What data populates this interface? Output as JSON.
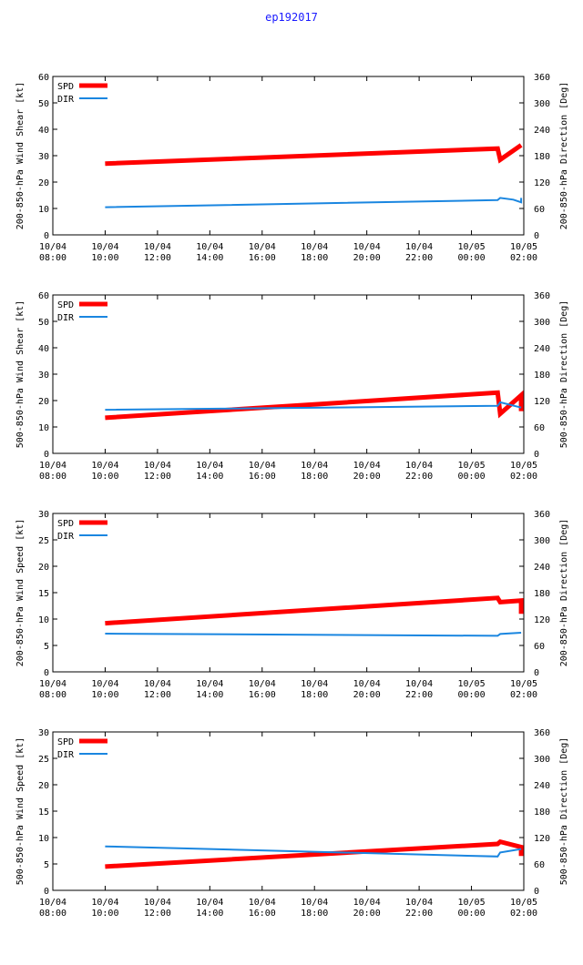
{
  "page_title": "ep192017",
  "colors": {
    "spd": "#ff0000",
    "dir": "#1a86e0",
    "title": "#1a1aff"
  },
  "x_ticks": [
    [
      "10/04",
      "08:00"
    ],
    [
      "10/04",
      "10:00"
    ],
    [
      "10/04",
      "12:00"
    ],
    [
      "10/04",
      "14:00"
    ],
    [
      "10/04",
      "16:00"
    ],
    [
      "10/04",
      "18:00"
    ],
    [
      "10/04",
      "20:00"
    ],
    [
      "10/04",
      "22:00"
    ],
    [
      "10/05",
      "00:00"
    ],
    [
      "10/05",
      "02:00"
    ]
  ],
  "chart_data": [
    {
      "type": "line",
      "ylabel": "200-850-hPa Wind Shear [kt]",
      "y2label": "200-850-hPa Direction [Deg]",
      "xlim": [
        "2017-10-04T08:00",
        "2017-10-05T02:00"
      ],
      "ylim": [
        0,
        60
      ],
      "yticks": [
        0,
        10,
        20,
        30,
        40,
        50,
        60
      ],
      "y2lim": [
        0,
        360
      ],
      "y2ticks": [
        0,
        60,
        120,
        180,
        240,
        300,
        360
      ],
      "legend_position": "top-left",
      "series": [
        {
          "name": "SPD",
          "axis": "left",
          "x": [
            "2017-10-04T10:00",
            "2017-10-05T01:00",
            "2017-10-05T01:06",
            "2017-10-05T01:54"
          ],
          "y": [
            27,
            32.7,
            28.5,
            34
          ]
        },
        {
          "name": "DIR",
          "axis": "right",
          "x": [
            "2017-10-04T10:00",
            "2017-10-05T01:00",
            "2017-10-05T01:06",
            "2017-10-05T01:36",
            "2017-10-05T01:54",
            "2017-10-05T01:54"
          ],
          "y": [
            63,
            79,
            84,
            80,
            74,
            84
          ]
        }
      ]
    },
    {
      "type": "line",
      "ylabel": "500-850-hPa Wind Shear [kt]",
      "y2label": "500-850-hPa Direction [Deg]",
      "xlim": [
        "2017-10-04T08:00",
        "2017-10-05T02:00"
      ],
      "ylim": [
        0,
        60
      ],
      "yticks": [
        0,
        10,
        20,
        30,
        40,
        50,
        60
      ],
      "y2lim": [
        0,
        360
      ],
      "y2ticks": [
        0,
        60,
        120,
        180,
        240,
        300,
        360
      ],
      "legend_position": "top-left",
      "series": [
        {
          "name": "SPD",
          "axis": "left",
          "x": [
            "2017-10-04T10:00",
            "2017-10-05T01:00",
            "2017-10-05T01:06",
            "2017-10-05T01:54",
            "2017-10-05T01:54"
          ],
          "y": [
            13.5,
            23,
            15,
            22,
            16
          ]
        },
        {
          "name": "DIR",
          "axis": "right",
          "x": [
            "2017-10-04T10:00",
            "2017-10-05T01:00",
            "2017-10-05T01:06",
            "2017-10-05T01:54"
          ],
          "y": [
            99,
            108,
            116,
            104
          ]
        }
      ]
    },
    {
      "type": "line",
      "ylabel": "200-850-hPa Wind Speed [kt]",
      "y2label": "200-850-hPa Direction [Deg]",
      "xlim": [
        "2017-10-04T08:00",
        "2017-10-05T02:00"
      ],
      "ylim": [
        0,
        30
      ],
      "yticks": [
        0,
        5,
        10,
        15,
        20,
        25,
        30
      ],
      "y2lim": [
        0,
        360
      ],
      "y2ticks": [
        0,
        60,
        120,
        180,
        240,
        300,
        360
      ],
      "legend_position": "top-left",
      "series": [
        {
          "name": "SPD",
          "axis": "left",
          "x": [
            "2017-10-04T10:00",
            "2017-10-05T01:00",
            "2017-10-05T01:06",
            "2017-10-05T01:54",
            "2017-10-05T01:54"
          ],
          "y": [
            9.2,
            14,
            13.2,
            13.5,
            11
          ]
        },
        {
          "name": "DIR",
          "axis": "right",
          "x": [
            "2017-10-04T10:00",
            "2017-10-05T01:00",
            "2017-10-05T01:06",
            "2017-10-05T01:54"
          ],
          "y": [
            87,
            82,
            86,
            89
          ]
        }
      ]
    },
    {
      "type": "line",
      "ylabel": "500-850-hPa Wind Speed [kt]",
      "y2label": "500-850-hPa Direction [Deg]",
      "xlim": [
        "2017-10-04T08:00",
        "2017-10-05T02:00"
      ],
      "ylim": [
        0,
        30
      ],
      "yticks": [
        0,
        5,
        10,
        15,
        20,
        25,
        30
      ],
      "y2lim": [
        0,
        360
      ],
      "y2ticks": [
        0,
        60,
        120,
        180,
        240,
        300,
        360
      ],
      "legend_position": "top-left",
      "series": [
        {
          "name": "SPD",
          "axis": "left",
          "x": [
            "2017-10-04T10:00",
            "2017-10-05T01:00",
            "2017-10-05T01:06",
            "2017-10-05T01:54",
            "2017-10-05T01:54"
          ],
          "y": [
            4.5,
            8.8,
            9.2,
            8.2,
            6.5
          ]
        },
        {
          "name": "DIR",
          "axis": "right",
          "x": [
            "2017-10-04T10:00",
            "2017-10-05T01:00",
            "2017-10-05T01:06",
            "2017-10-05T01:54"
          ],
          "y": [
            100,
            77,
            86,
            94
          ]
        }
      ]
    }
  ]
}
